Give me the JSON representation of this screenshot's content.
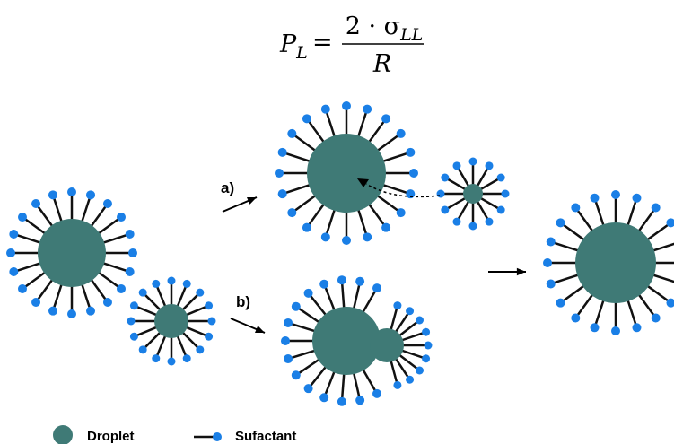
{
  "formula": {
    "lhs": "P",
    "lhs_sub": "L",
    "numerator": "2 · σ",
    "numerator_sub": "LL",
    "denominator": "R"
  },
  "labels": {
    "a": "a)",
    "b": "b)"
  },
  "legend": {
    "droplet": "Droplet",
    "surfactant": "Sufactant"
  }
}
